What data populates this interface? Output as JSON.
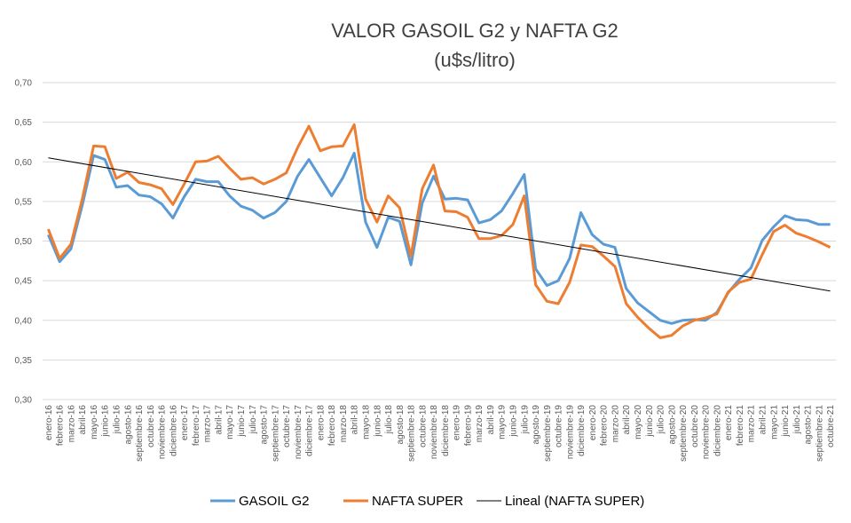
{
  "chart_data": {
    "type": "line",
    "title": "VALOR GASOIL G2 y NAFTA G2",
    "subtitle": "(u$s/litro)",
    "categories": [
      "enero-16",
      "febrero-16",
      "marzo-16",
      "abril-16",
      "mayo-16",
      "junio-16",
      "julio-16",
      "agosto-16",
      "septiembre-16",
      "octubre-16",
      "noviembre-16",
      "diciembre-16",
      "enero-17",
      "febrero-17",
      "marzo-17",
      "abril-17",
      "mayo-17",
      "junio-17",
      "julio-17",
      "agosto-17",
      "septiembre-17",
      "octubre-17",
      "noviembre-17",
      "diciembre-17",
      "enero-18",
      "febrero-18",
      "marzo-18",
      "abril-18",
      "mayo-18",
      "junio-18",
      "julio-18",
      "agosto-18",
      "septiembre-18",
      "octubre-18",
      "noviembre-18",
      "diciembre-18",
      "enero-19",
      "febrero-19",
      "marzo-19",
      "abril-19",
      "mayo-19",
      "junio-19",
      "julio-19",
      "agosto-19",
      "septiembre-19",
      "octubre-19",
      "noviembre-19",
      "diciembre-19",
      "enero-20",
      "febrero-20",
      "marzo-20",
      "abril-20",
      "mayo-20",
      "junio-20",
      "julio-20",
      "agosto-20",
      "septiembre-20",
      "octubre-20",
      "noviembre-20",
      "diciembre-20",
      "enero-21",
      "febrero-21",
      "marzo-21",
      "abril-21",
      "mayo-21",
      "junio-21",
      "julio-21",
      "agosto-21",
      "septiembre-21",
      "octubre-21"
    ],
    "series": [
      {
        "name": "GASOIL G2",
        "color": "#5b9bd5",
        "values": [
          0.508,
          0.474,
          0.49,
          0.545,
          0.608,
          0.603,
          0.568,
          0.57,
          0.558,
          0.556,
          0.547,
          0.529,
          0.556,
          0.578,
          0.575,
          0.575,
          0.557,
          0.544,
          0.539,
          0.529,
          0.536,
          0.55,
          0.582,
          0.603,
          0.58,
          0.557,
          0.58,
          0.611,
          0.524,
          0.492,
          0.53,
          0.525,
          0.47,
          0.548,
          0.582,
          0.553,
          0.554,
          0.552,
          0.523,
          0.527,
          0.538,
          0.56,
          0.584,
          0.465,
          0.444,
          0.45,
          0.478,
          0.536,
          0.508,
          0.496,
          0.492,
          0.44,
          0.422,
          0.411,
          0.4,
          0.396,
          0.4,
          0.401,
          0.4,
          0.41,
          0.435,
          0.452,
          0.466,
          0.501,
          0.518,
          0.532,
          0.527,
          0.526,
          0.521,
          0.521
        ]
      },
      {
        "name": "NAFTA SUPER",
        "color": "#ed7d31",
        "values": [
          0.515,
          0.478,
          0.496,
          0.553,
          0.62,
          0.619,
          0.579,
          0.587,
          0.574,
          0.571,
          0.566,
          0.546,
          0.572,
          0.6,
          0.601,
          0.607,
          0.592,
          0.578,
          0.58,
          0.572,
          0.578,
          0.586,
          0.618,
          0.645,
          0.614,
          0.619,
          0.62,
          0.647,
          0.553,
          0.524,
          0.557,
          0.542,
          0.481,
          0.566,
          0.596,
          0.538,
          0.537,
          0.53,
          0.503,
          0.503,
          0.507,
          0.521,
          0.557,
          0.445,
          0.424,
          0.421,
          0.448,
          0.495,
          0.493,
          0.481,
          0.468,
          0.421,
          0.404,
          0.39,
          0.378,
          0.381,
          0.393,
          0.4,
          0.403,
          0.408,
          0.436,
          0.448,
          0.452,
          0.483,
          0.512,
          0.52,
          0.51,
          0.505,
          0.499,
          0.492
        ]
      }
    ],
    "trendline": {
      "name": "Lineal (NAFTA SUPER)",
      "color": "#000000",
      "values": [
        0.605,
        0.437
      ]
    },
    "ylim": [
      0.3,
      0.7
    ],
    "yticks": [
      {
        "value": 0.3,
        "label": "0,30"
      },
      {
        "value": 0.35,
        "label": "0,35"
      },
      {
        "value": 0.4,
        "label": "0,40"
      },
      {
        "value": 0.45,
        "label": "0,45"
      },
      {
        "value": 0.5,
        "label": "0,50"
      },
      {
        "value": 0.55,
        "label": "0,55"
      },
      {
        "value": 0.6,
        "label": "0,60"
      },
      {
        "value": 0.65,
        "label": "0,65"
      },
      {
        "value": 0.7,
        "label": "0,70"
      }
    ],
    "grid": true,
    "legend": "bottom"
  }
}
